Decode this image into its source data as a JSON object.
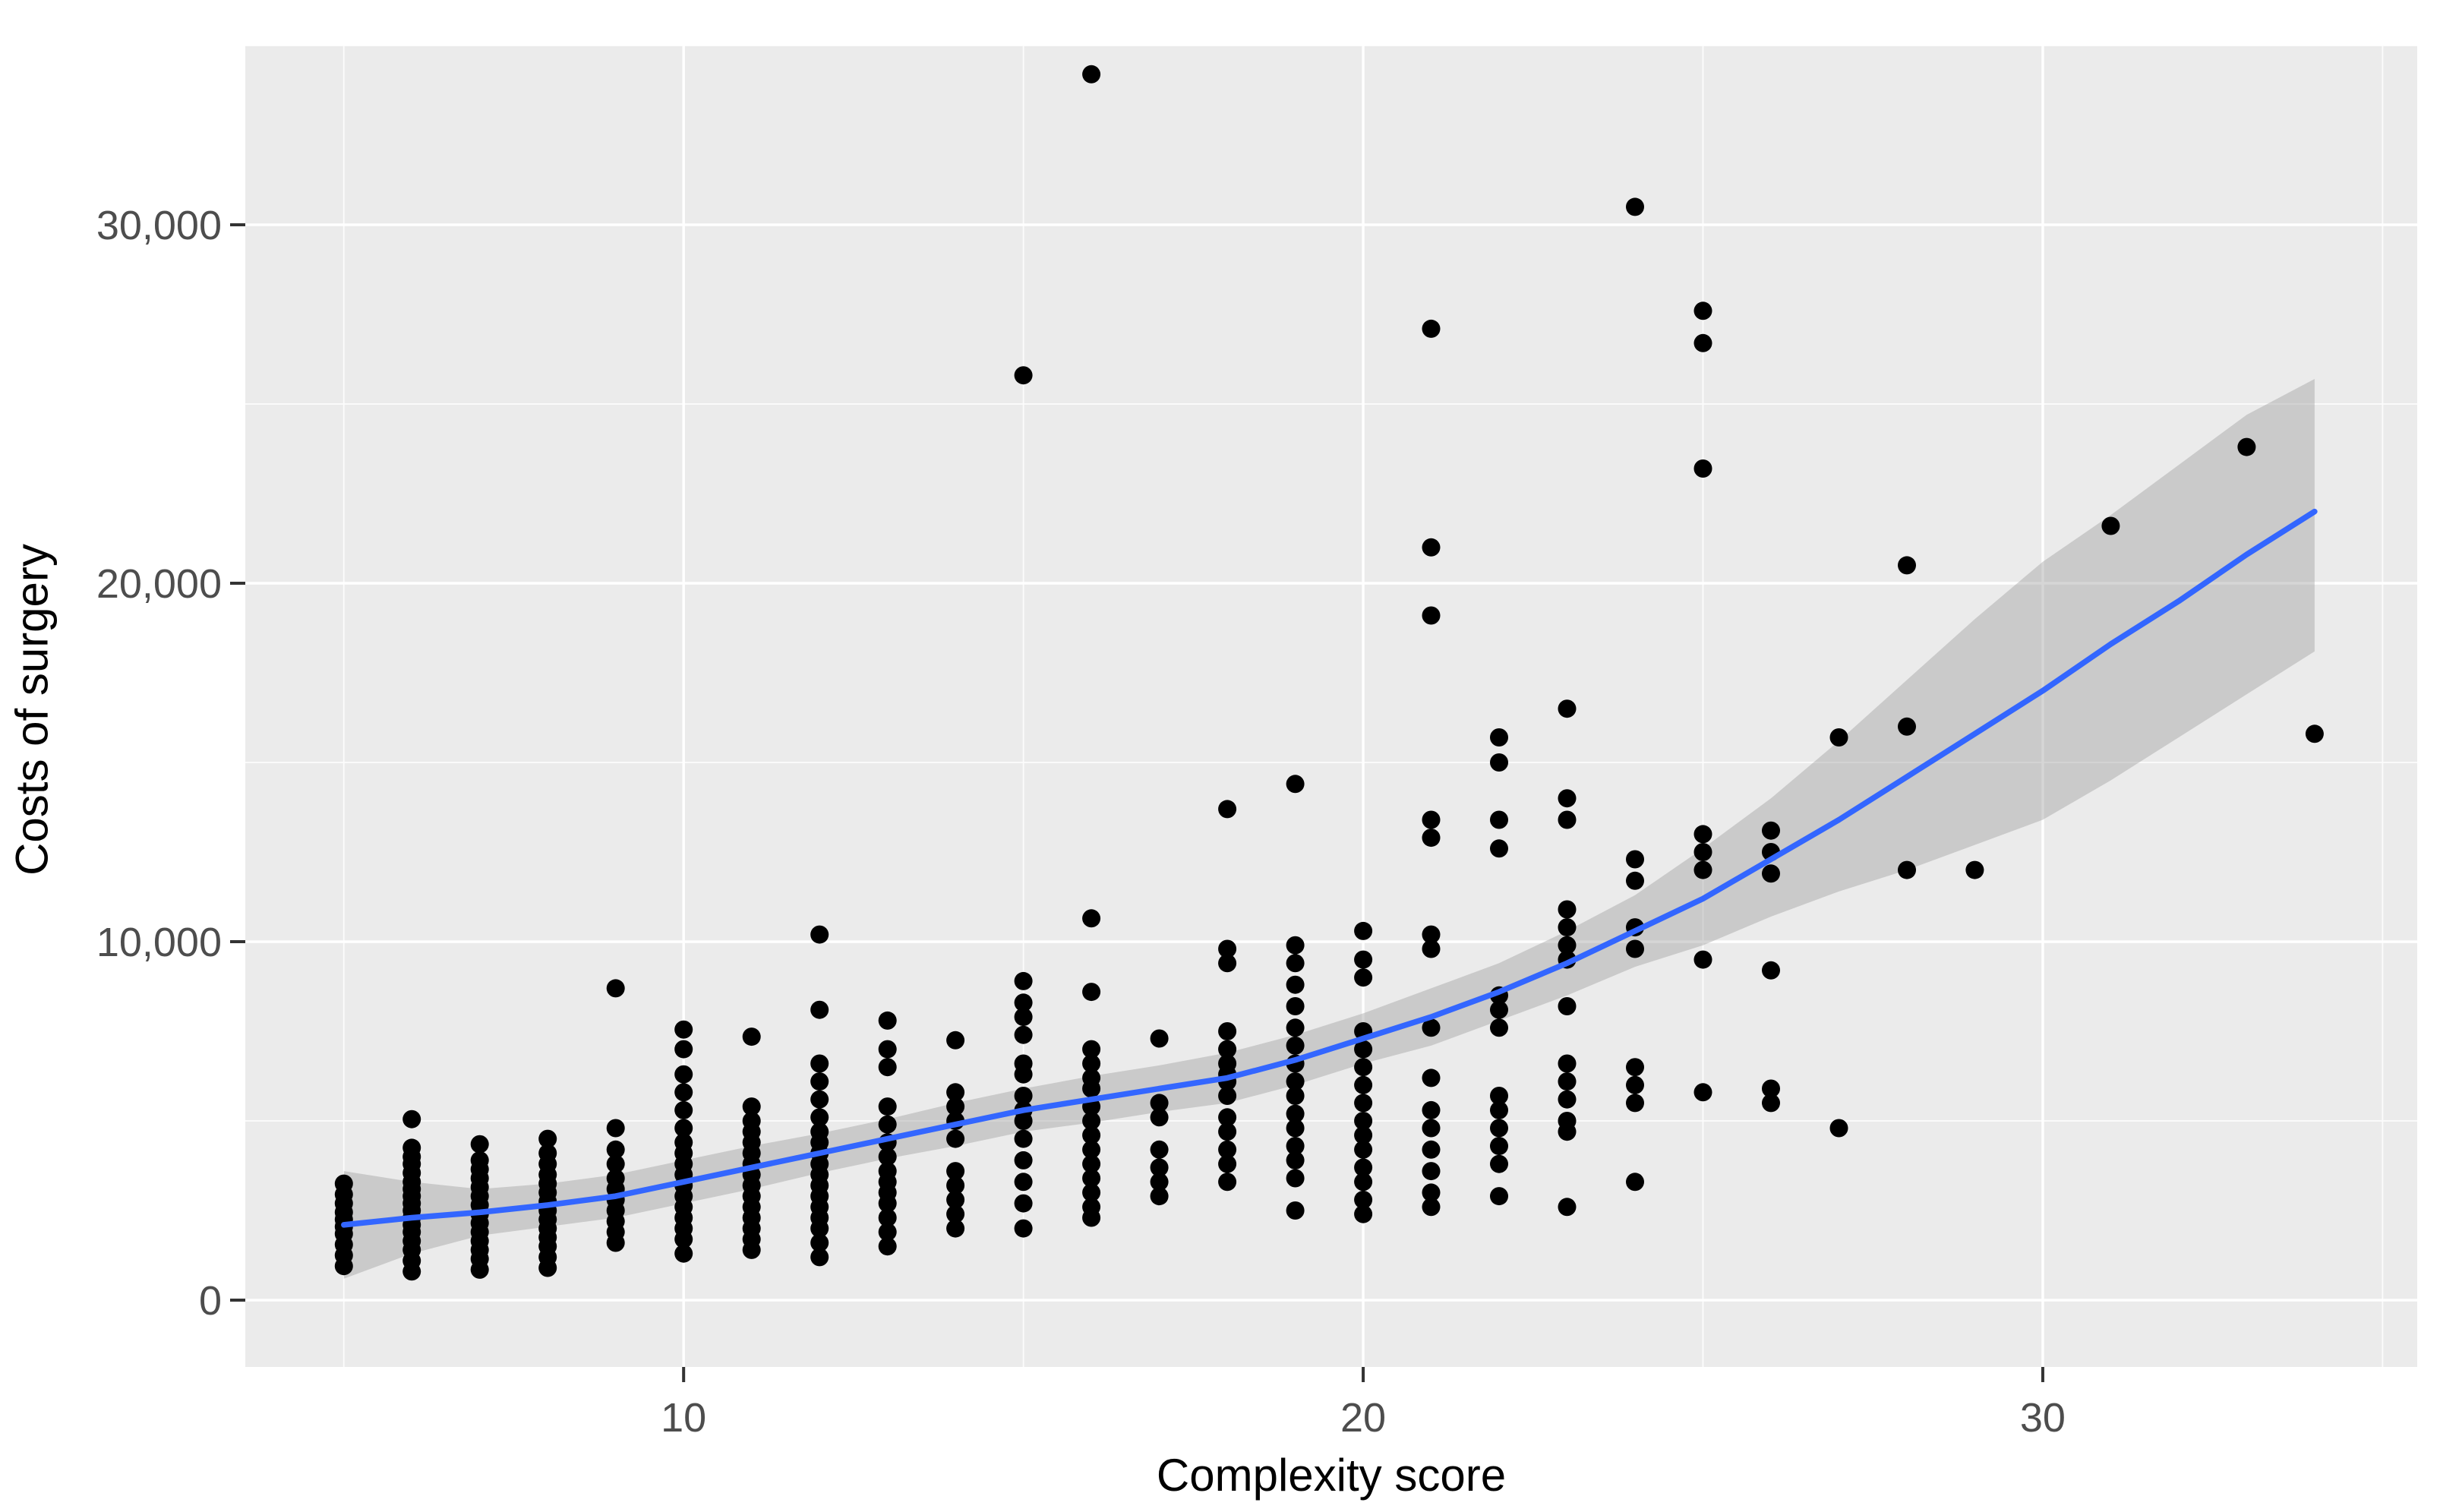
{
  "chart_data": {
    "type": "scatter",
    "title": "",
    "xlabel": "Complexity score",
    "ylabel": "Costs of surgery",
    "x_ticks": {
      "values": [
        10,
        20,
        30
      ],
      "labels": [
        "10",
        "20",
        "30"
      ]
    },
    "y_ticks": {
      "values": [
        0,
        10000,
        20000,
        30000
      ],
      "labels": [
        "0",
        "10,000",
        "20,000",
        "30,000"
      ]
    },
    "x_minor": [
      5,
      15,
      25,
      35
    ],
    "y_minor": [
      5000,
      15000,
      25000,
      35000
    ],
    "xlim": [
      3.55,
      35.51
    ],
    "ylim": [
      -1864,
      35000
    ],
    "grid": "on",
    "legend": "none",
    "points": [
      [
        5,
        3250
      ],
      [
        5,
        2950
      ],
      [
        5,
        2700
      ],
      [
        5,
        2450
      ],
      [
        5,
        2250
      ],
      [
        5,
        2050
      ],
      [
        5,
        1850
      ],
      [
        5,
        1550
      ],
      [
        5,
        1250
      ],
      [
        5,
        950
      ],
      [
        6,
        5050
      ],
      [
        6,
        4250
      ],
      [
        6,
        4000
      ],
      [
        6,
        3800
      ],
      [
        6,
        3550
      ],
      [
        6,
        3300
      ],
      [
        6,
        3100
      ],
      [
        6,
        2900
      ],
      [
        6,
        2700
      ],
      [
        6,
        2500
      ],
      [
        6,
        2300
      ],
      [
        6,
        2100
      ],
      [
        6,
        1900
      ],
      [
        6,
        1650
      ],
      [
        6,
        1400
      ],
      [
        6,
        1100
      ],
      [
        6,
        800
      ],
      [
        7,
        4350
      ],
      [
        7,
        3900
      ],
      [
        7,
        3650
      ],
      [
        7,
        3400
      ],
      [
        7,
        3150
      ],
      [
        7,
        2900
      ],
      [
        7,
        2650
      ],
      [
        7,
        2400
      ],
      [
        7,
        2150
      ],
      [
        7,
        1900
      ],
      [
        7,
        1650
      ],
      [
        7,
        1400
      ],
      [
        7,
        1150
      ],
      [
        7,
        850
      ],
      [
        8,
        4500
      ],
      [
        8,
        4100
      ],
      [
        8,
        3800
      ],
      [
        8,
        3500
      ],
      [
        8,
        3250
      ],
      [
        8,
        3000
      ],
      [
        8,
        2750
      ],
      [
        8,
        2500
      ],
      [
        8,
        2250
      ],
      [
        8,
        2000
      ],
      [
        8,
        1750
      ],
      [
        8,
        1500
      ],
      [
        8,
        1200
      ],
      [
        8,
        900
      ],
      [
        9,
        8700
      ],
      [
        9,
        4800
      ],
      [
        9,
        4200
      ],
      [
        9,
        3800
      ],
      [
        9,
        3400
      ],
      [
        9,
        3100
      ],
      [
        9,
        2800
      ],
      [
        9,
        2500
      ],
      [
        9,
        2200
      ],
      [
        9,
        1900
      ],
      [
        9,
        1600
      ],
      [
        10,
        7550
      ],
      [
        10,
        7000
      ],
      [
        10,
        6300
      ],
      [
        10,
        5800
      ],
      [
        10,
        5300
      ],
      [
        10,
        4800
      ],
      [
        10,
        4400
      ],
      [
        10,
        4100
      ],
      [
        10,
        3800
      ],
      [
        10,
        3500
      ],
      [
        10,
        3200
      ],
      [
        10,
        2900
      ],
      [
        10,
        2600
      ],
      [
        10,
        2300
      ],
      [
        10,
        2000
      ],
      [
        10,
        1700
      ],
      [
        10,
        1300
      ],
      [
        11,
        7350
      ],
      [
        11,
        5400
      ],
      [
        11,
        5000
      ],
      [
        11,
        4700
      ],
      [
        11,
        4400
      ],
      [
        11,
        4100
      ],
      [
        11,
        3800
      ],
      [
        11,
        3500
      ],
      [
        11,
        3200
      ],
      [
        11,
        2900
      ],
      [
        11,
        2600
      ],
      [
        11,
        2300
      ],
      [
        11,
        2000
      ],
      [
        11,
        1700
      ],
      [
        11,
        1400
      ],
      [
        12,
        10200
      ],
      [
        12,
        8100
      ],
      [
        12,
        6600
      ],
      [
        12,
        6100
      ],
      [
        12,
        5600
      ],
      [
        12,
        5100
      ],
      [
        12,
        4700
      ],
      [
        12,
        4400
      ],
      [
        12,
        4100
      ],
      [
        12,
        3800
      ],
      [
        12,
        3500
      ],
      [
        12,
        3200
      ],
      [
        12,
        2900
      ],
      [
        12,
        2600
      ],
      [
        12,
        2300
      ],
      [
        12,
        2000
      ],
      [
        12,
        1600
      ],
      [
        12,
        1200
      ],
      [
        13,
        7800
      ],
      [
        13,
        7000
      ],
      [
        13,
        6500
      ],
      [
        13,
        5400
      ],
      [
        13,
        4900
      ],
      [
        13,
        4400
      ],
      [
        13,
        4000
      ],
      [
        13,
        3600
      ],
      [
        13,
        3300
      ],
      [
        13,
        3000
      ],
      [
        13,
        2700
      ],
      [
        13,
        2300
      ],
      [
        13,
        1900
      ],
      [
        13,
        1500
      ],
      [
        14,
        7250
      ],
      [
        14,
        5800
      ],
      [
        14,
        5400
      ],
      [
        14,
        5000
      ],
      [
        14,
        4500
      ],
      [
        14,
        3600
      ],
      [
        14,
        3200
      ],
      [
        14,
        2800
      ],
      [
        14,
        2400
      ],
      [
        14,
        2000
      ],
      [
        15,
        25800
      ],
      [
        15,
        8900
      ],
      [
        15,
        8300
      ],
      [
        15,
        7900
      ],
      [
        15,
        7400
      ],
      [
        15,
        6600
      ],
      [
        15,
        6300
      ],
      [
        15,
        5700
      ],
      [
        15,
        5300
      ],
      [
        15,
        5000
      ],
      [
        15,
        4500
      ],
      [
        15,
        3900
      ],
      [
        15,
        3300
      ],
      [
        15,
        2700
      ],
      [
        15,
        2000
      ],
      [
        16,
        34200
      ],
      [
        16,
        10650
      ],
      [
        16,
        8600
      ],
      [
        16,
        7000
      ],
      [
        16,
        6600
      ],
      [
        16,
        6200
      ],
      [
        16,
        5900
      ],
      [
        16,
        5400
      ],
      [
        16,
        5000
      ],
      [
        16,
        4600
      ],
      [
        16,
        4200
      ],
      [
        16,
        3800
      ],
      [
        16,
        3400
      ],
      [
        16,
        3000
      ],
      [
        16,
        2600
      ],
      [
        16,
        2300
      ],
      [
        17,
        7300
      ],
      [
        17,
        5500
      ],
      [
        17,
        5100
      ],
      [
        17,
        4200
      ],
      [
        17,
        3700
      ],
      [
        17,
        3300
      ],
      [
        17,
        2900
      ],
      [
        18,
        13700
      ],
      [
        18,
        9800
      ],
      [
        18,
        9400
      ],
      [
        18,
        7500
      ],
      [
        18,
        7000
      ],
      [
        18,
        6600
      ],
      [
        18,
        6300
      ],
      [
        18,
        6100
      ],
      [
        18,
        5700
      ],
      [
        18,
        5100
      ],
      [
        18,
        4700
      ],
      [
        18,
        4200
      ],
      [
        18,
        3800
      ],
      [
        18,
        3300
      ],
      [
        19,
        14400
      ],
      [
        19,
        9900
      ],
      [
        19,
        9400
      ],
      [
        19,
        8800
      ],
      [
        19,
        8200
      ],
      [
        19,
        7600
      ],
      [
        19,
        7100
      ],
      [
        19,
        6600
      ],
      [
        19,
        6100
      ],
      [
        19,
        5700
      ],
      [
        19,
        5200
      ],
      [
        19,
        4800
      ],
      [
        19,
        4300
      ],
      [
        19,
        3900
      ],
      [
        19,
        3400
      ],
      [
        19,
        2500
      ],
      [
        20,
        10300
      ],
      [
        20,
        9500
      ],
      [
        20,
        9000
      ],
      [
        20,
        7500
      ],
      [
        20,
        7000
      ],
      [
        20,
        6500
      ],
      [
        20,
        6000
      ],
      [
        20,
        5500
      ],
      [
        20,
        5000
      ],
      [
        20,
        4600
      ],
      [
        20,
        4200
      ],
      [
        20,
        3700
      ],
      [
        20,
        3300
      ],
      [
        20,
        2800
      ],
      [
        20,
        2400
      ],
      [
        21,
        27100
      ],
      [
        21,
        21000
      ],
      [
        21,
        19100
      ],
      [
        21,
        13400
      ],
      [
        21,
        12900
      ],
      [
        21,
        10200
      ],
      [
        21,
        9800
      ],
      [
        21,
        7600
      ],
      [
        21,
        6200
      ],
      [
        21,
        5300
      ],
      [
        21,
        4800
      ],
      [
        21,
        4200
      ],
      [
        21,
        3600
      ],
      [
        21,
        3000
      ],
      [
        21,
        2600
      ],
      [
        22,
        15700
      ],
      [
        22,
        15000
      ],
      [
        22,
        13400
      ],
      [
        22,
        12600
      ],
      [
        22,
        8500
      ],
      [
        22,
        8100
      ],
      [
        22,
        7600
      ],
      [
        22,
        5700
      ],
      [
        22,
        5300
      ],
      [
        22,
        4800
      ],
      [
        22,
        4300
      ],
      [
        22,
        3800
      ],
      [
        22,
        2900
      ],
      [
        23,
        16500
      ],
      [
        23,
        14000
      ],
      [
        23,
        13400
      ],
      [
        23,
        10900
      ],
      [
        23,
        10400
      ],
      [
        23,
        9900
      ],
      [
        23,
        9500
      ],
      [
        23,
        8200
      ],
      [
        23,
        6600
      ],
      [
        23,
        6100
      ],
      [
        23,
        5600
      ],
      [
        23,
        5000
      ],
      [
        23,
        4700
      ],
      [
        23,
        2600
      ],
      [
        24,
        30500
      ],
      [
        24,
        12300
      ],
      [
        24,
        11700
      ],
      [
        24,
        10400
      ],
      [
        24,
        9800
      ],
      [
        24,
        6500
      ],
      [
        24,
        6000
      ],
      [
        24,
        5500
      ],
      [
        24,
        3300
      ],
      [
        25,
        27600
      ],
      [
        25,
        26700
      ],
      [
        25,
        23200
      ],
      [
        25,
        13000
      ],
      [
        25,
        12500
      ],
      [
        25,
        12000
      ],
      [
        25,
        9500
      ],
      [
        25,
        5800
      ],
      [
        26,
        13100
      ],
      [
        26,
        12500
      ],
      [
        26,
        11900
      ],
      [
        26,
        9200
      ],
      [
        26,
        5900
      ],
      [
        26,
        5500
      ],
      [
        27,
        15700
      ],
      [
        27,
        4800
      ],
      [
        28,
        20500
      ],
      [
        28,
        16000
      ],
      [
        28,
        12000
      ],
      [
        29,
        12000
      ],
      [
        31,
        21600
      ],
      [
        33,
        23800
      ],
      [
        34,
        15800
      ]
    ],
    "smooth": {
      "model": "loess",
      "x": [
        5,
        6,
        7,
        8,
        9,
        10,
        11,
        12,
        13,
        14,
        15,
        16,
        17,
        18,
        19,
        20,
        21,
        22,
        23,
        24,
        25,
        26,
        27,
        28,
        29,
        30,
        31,
        32,
        33,
        34
      ],
      "y": [
        2100,
        2300,
        2450,
        2650,
        2900,
        3300,
        3700,
        4100,
        4500,
        4900,
        5300,
        5600,
        5900,
        6200,
        6700,
        7300,
        7900,
        8600,
        9400,
        10300,
        11200,
        12300,
        13400,
        14600,
        15800,
        17000,
        18300,
        19500,
        20800,
        22000
      ]
    },
    "ribbon": {
      "x": [
        5,
        6,
        7,
        8,
        9,
        10,
        11,
        12,
        13,
        14,
        15,
        16,
        17,
        18,
        19,
        20,
        21,
        22,
        23,
        24,
        25,
        26,
        27,
        28,
        29,
        30,
        31,
        32,
        33,
        34
      ],
      "upper": [
        3600,
        3300,
        3100,
        3250,
        3500,
        3900,
        4300,
        4650,
        5050,
        5500,
        5900,
        6250,
        6550,
        6900,
        7400,
        8000,
        8700,
        9400,
        10300,
        11300,
        12600,
        14000,
        15600,
        17300,
        19000,
        20600,
        21900,
        23300,
        24700,
        25700
      ],
      "lower": [
        600,
        1300,
        1800,
        2050,
        2300,
        2700,
        3100,
        3550,
        3950,
        4300,
        4700,
        4950,
        5250,
        5500,
        6000,
        6600,
        7100,
        7800,
        8500,
        9300,
        9900,
        10700,
        11400,
        12000,
        12700,
        13400,
        14500,
        15700,
        16900,
        18100
      ]
    },
    "colors": {
      "panel_background": "#EBEBEB",
      "grid_major": "#FFFFFF",
      "grid_minor": "#FFFFFF",
      "point": "#000000",
      "smooth_line": "#3366FF",
      "ribbon": "#999999",
      "tick_label": "#4D4D4D",
      "tick_mark": "#333333",
      "axis_title": "#000000",
      "outer_background": "#FFFFFF"
    }
  }
}
